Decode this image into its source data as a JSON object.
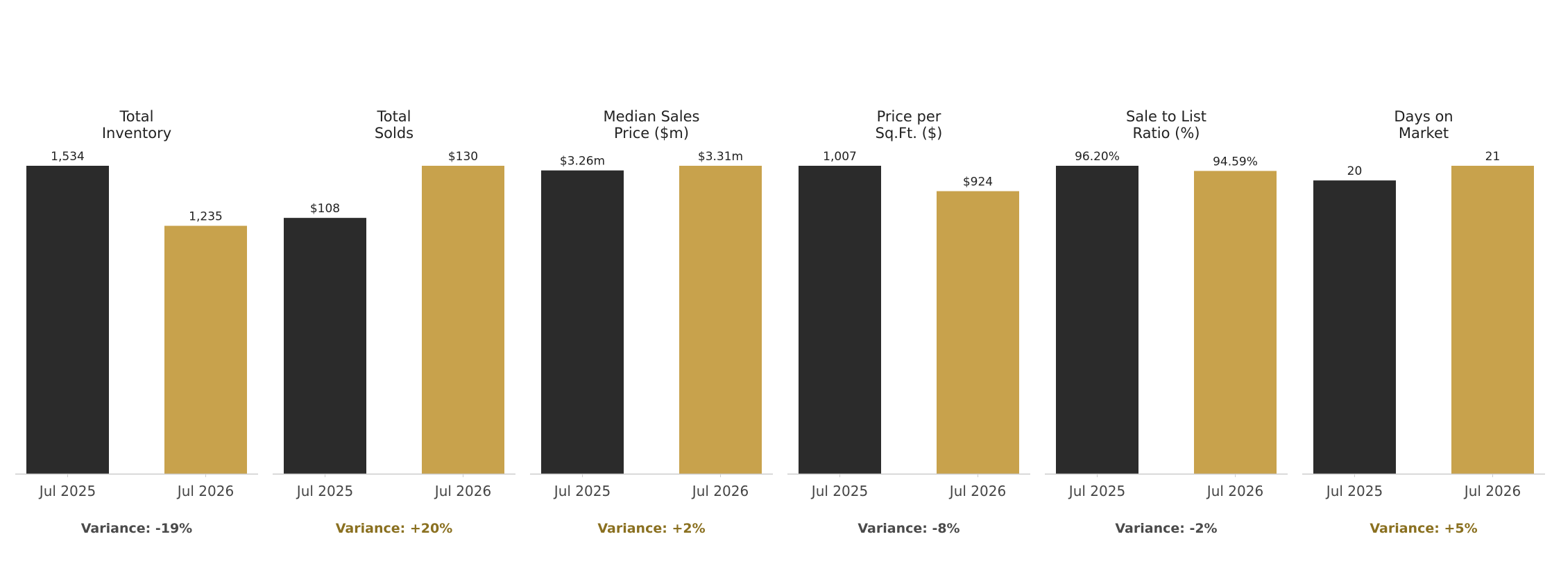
{
  "colors": {
    "prior": "#2b2b2b",
    "current": "#c8a24c",
    "axis": "#cccccc",
    "title_text": "#222222",
    "tick_text": "#444444",
    "value_text": "#222222",
    "variance_negative": "#4a4a4a",
    "variance_positive": "#8a7020"
  },
  "chart_data": [
    {
      "type": "bar",
      "title": [
        "Total",
        "Inventory"
      ],
      "categories": [
        "Jul 2025",
        "Jul 2026"
      ],
      "values": [
        1534,
        1235
      ],
      "value_labels": [
        "1,534",
        "1,235"
      ],
      "ylim": [
        0,
        1534
      ],
      "variance": "Variance: -19%",
      "variance_sign": "negative"
    },
    {
      "type": "bar",
      "title": [
        "Total",
        "Solds"
      ],
      "categories": [
        "Jul 2025",
        "Jul 2026"
      ],
      "values": [
        108,
        130
      ],
      "value_labels": [
        "$108",
        "$130"
      ],
      "ylim": [
        0,
        130
      ],
      "variance": "Variance: +20%",
      "variance_sign": "positive"
    },
    {
      "type": "bar",
      "title": [
        "Median Sales",
        "Price ($m)"
      ],
      "categories": [
        "Jul 2025",
        "Jul 2026"
      ],
      "values": [
        3.26,
        3.31
      ],
      "value_labels": [
        "$3.26m",
        "$3.31m"
      ],
      "ylim": [
        0,
        3.31
      ],
      "variance": "Variance: +2%",
      "variance_sign": "positive"
    },
    {
      "type": "bar",
      "title": [
        "Price per",
        "Sq.Ft. ($)"
      ],
      "categories": [
        "Jul 2025",
        "Jul 2026"
      ],
      "values": [
        1007,
        924
      ],
      "value_labels": [
        "1,007",
        "$924"
      ],
      "ylim": [
        0,
        1007
      ],
      "variance": "Variance: -8%",
      "variance_sign": "negative"
    },
    {
      "type": "bar",
      "title": [
        "Sale to List",
        "Ratio (%)"
      ],
      "categories": [
        "Jul 2025",
        "Jul 2026"
      ],
      "values": [
        96.2,
        94.59
      ],
      "value_labels": [
        "96.20%",
        "94.59%"
      ],
      "ylim": [
        0,
        96.2
      ],
      "variance": "Variance: -2%",
      "variance_sign": "negative"
    },
    {
      "type": "bar",
      "title": [
        "Days on",
        "Market"
      ],
      "categories": [
        "Jul 2025",
        "Jul 2026"
      ],
      "values": [
        20,
        21
      ],
      "value_labels": [
        "20",
        "21"
      ],
      "ylim": [
        0,
        21
      ],
      "variance": "Variance: +5%",
      "variance_sign": "positive"
    }
  ]
}
